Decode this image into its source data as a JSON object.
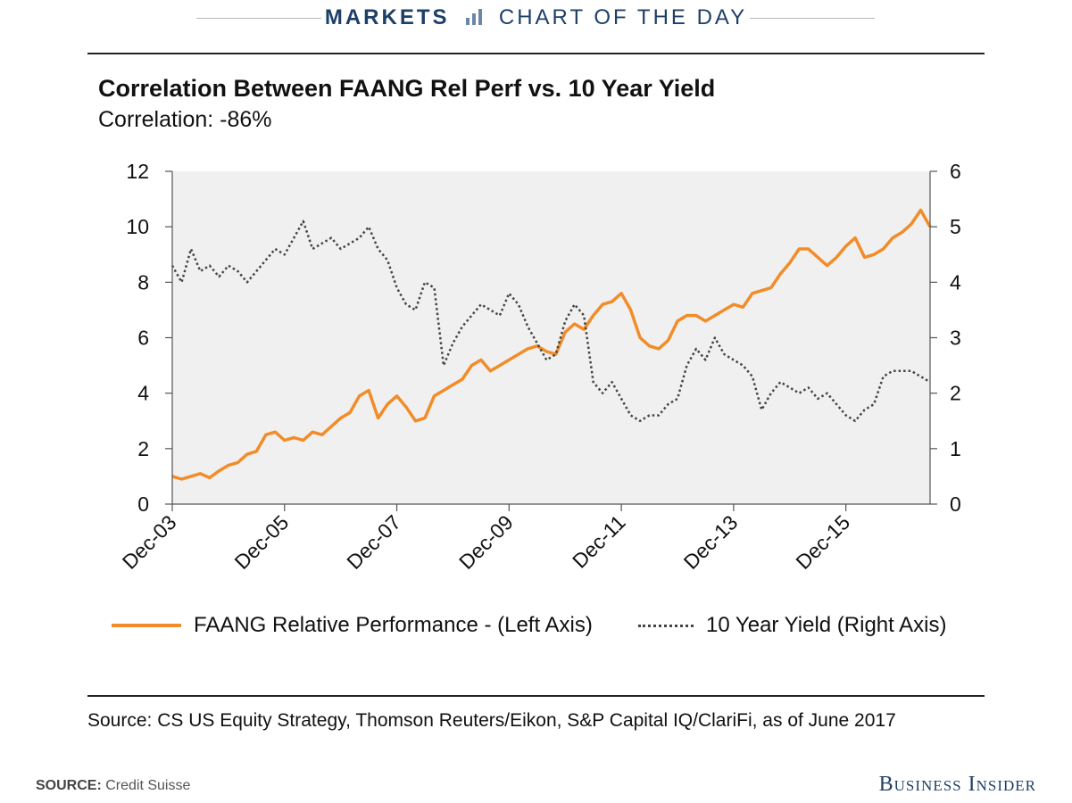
{
  "header": {
    "section": "MARKETS",
    "feature": "CHART OF THE DAY",
    "section_color": "#1e3f66"
  },
  "chart_data": {
    "type": "line",
    "title": "Correlation Between FAANG Rel Perf vs. 10 Year Yield",
    "subtitle": "Correlation: -86%",
    "x_tick_labels": [
      "Dec-03",
      "Dec-05",
      "Dec-07",
      "Dec-09",
      "Dec-11",
      "Dec-13",
      "Dec-15"
    ],
    "xlim": [
      "2003-12",
      "2017-06"
    ],
    "ylim_left": [
      0,
      12
    ],
    "ylim_right": [
      0,
      6
    ],
    "y_ticks_left": [
      "0",
      "2",
      "4",
      "6",
      "8",
      "10",
      "12"
    ],
    "y_ticks_right": [
      "0",
      "1",
      "2",
      "3",
      "4",
      "5",
      "6"
    ],
    "grid": false,
    "background": "#f0f0f0",
    "legend_position": "bottom",
    "series": [
      {
        "name": "FAANG Relative Performance - (Left Axis)",
        "axis": "left",
        "color": "#f28c28",
        "style": "solid",
        "x": [
          "2003-12",
          "2004-02",
          "2004-04",
          "2004-06",
          "2004-08",
          "2004-10",
          "2004-12",
          "2005-02",
          "2005-04",
          "2005-06",
          "2005-08",
          "2005-10",
          "2005-12",
          "2006-02",
          "2006-04",
          "2006-06",
          "2006-08",
          "2006-10",
          "2006-12",
          "2007-02",
          "2007-04",
          "2007-06",
          "2007-08",
          "2007-10",
          "2007-12",
          "2008-02",
          "2008-04",
          "2008-06",
          "2008-08",
          "2008-10",
          "2008-12",
          "2009-02",
          "2009-04",
          "2009-06",
          "2009-08",
          "2009-10",
          "2009-12",
          "2010-02",
          "2010-04",
          "2010-06",
          "2010-08",
          "2010-10",
          "2010-12",
          "2011-02",
          "2011-04",
          "2011-06",
          "2011-08",
          "2011-10",
          "2011-12",
          "2012-02",
          "2012-04",
          "2012-06",
          "2012-08",
          "2012-10",
          "2012-12",
          "2013-02",
          "2013-04",
          "2013-06",
          "2013-08",
          "2013-10",
          "2013-12",
          "2014-02",
          "2014-04",
          "2014-06",
          "2014-08",
          "2014-10",
          "2014-12",
          "2015-02",
          "2015-04",
          "2015-06",
          "2015-08",
          "2015-10",
          "2015-12",
          "2016-02",
          "2016-04",
          "2016-06",
          "2016-08",
          "2016-10",
          "2016-12",
          "2017-02",
          "2017-04",
          "2017-06"
        ],
        "values": [
          1.0,
          0.9,
          1.0,
          1.1,
          0.95,
          1.2,
          1.4,
          1.5,
          1.8,
          1.9,
          2.5,
          2.6,
          2.3,
          2.4,
          2.3,
          2.6,
          2.5,
          2.8,
          3.1,
          3.3,
          3.9,
          4.1,
          3.1,
          3.6,
          3.9,
          3.5,
          3.0,
          3.1,
          3.9,
          4.1,
          4.3,
          4.5,
          5.0,
          5.2,
          4.8,
          5.0,
          5.2,
          5.4,
          5.6,
          5.7,
          5.5,
          5.4,
          6.2,
          6.5,
          6.3,
          6.8,
          7.2,
          7.3,
          7.6,
          7.0,
          6.0,
          5.7,
          5.6,
          5.9,
          6.6,
          6.8,
          6.8,
          6.6,
          6.8,
          7.0,
          7.2,
          7.1,
          7.6,
          7.7,
          7.8,
          8.3,
          8.7,
          9.2,
          9.2,
          8.9,
          8.6,
          8.9,
          9.3,
          9.6,
          8.9,
          9.0,
          9.2,
          9.6,
          9.8,
          10.1,
          10.6,
          10.0
        ]
      },
      {
        "name": "10 Year Yield (Right Axis)",
        "axis": "right",
        "color": "#444444",
        "style": "dotted",
        "x": [
          "2003-12",
          "2004-02",
          "2004-04",
          "2004-06",
          "2004-08",
          "2004-10",
          "2004-12",
          "2005-02",
          "2005-04",
          "2005-06",
          "2005-08",
          "2005-10",
          "2005-12",
          "2006-02",
          "2006-04",
          "2006-06",
          "2006-08",
          "2006-10",
          "2006-12",
          "2007-02",
          "2007-04",
          "2007-06",
          "2007-08",
          "2007-10",
          "2007-12",
          "2008-02",
          "2008-04",
          "2008-06",
          "2008-08",
          "2008-10",
          "2008-12",
          "2009-02",
          "2009-04",
          "2009-06",
          "2009-08",
          "2009-10",
          "2009-12",
          "2010-02",
          "2010-04",
          "2010-06",
          "2010-08",
          "2010-10",
          "2010-12",
          "2011-02",
          "2011-04",
          "2011-06",
          "2011-08",
          "2011-10",
          "2011-12",
          "2012-02",
          "2012-04",
          "2012-06",
          "2012-08",
          "2012-10",
          "2012-12",
          "2013-02",
          "2013-04",
          "2013-06",
          "2013-08",
          "2013-10",
          "2013-12",
          "2014-02",
          "2014-04",
          "2014-06",
          "2014-08",
          "2014-10",
          "2014-12",
          "2015-02",
          "2015-04",
          "2015-06",
          "2015-08",
          "2015-10",
          "2015-12",
          "2016-02",
          "2016-04",
          "2016-06",
          "2016-08",
          "2016-10",
          "2016-12",
          "2017-02",
          "2017-04",
          "2017-06"
        ],
        "values": [
          4.3,
          4.0,
          4.6,
          4.2,
          4.3,
          4.1,
          4.3,
          4.2,
          4.0,
          4.2,
          4.4,
          4.6,
          4.5,
          4.8,
          5.1,
          4.6,
          4.7,
          4.8,
          4.6,
          4.7,
          4.8,
          5.0,
          4.6,
          4.4,
          3.9,
          3.6,
          3.5,
          4.0,
          3.9,
          2.5,
          2.9,
          3.2,
          3.4,
          3.6,
          3.5,
          3.4,
          3.8,
          3.6,
          3.2,
          2.9,
          2.6,
          2.7,
          3.3,
          3.6,
          3.4,
          2.2,
          2.0,
          2.2,
          1.9,
          1.6,
          1.5,
          1.6,
          1.6,
          1.8,
          1.9,
          2.5,
          2.8,
          2.6,
          3.0,
          2.7,
          2.6,
          2.5,
          2.3,
          1.7,
          2.0,
          2.2,
          2.1,
          2.0,
          2.1,
          1.9,
          2.0,
          1.8,
          1.6,
          1.5,
          1.7,
          1.8,
          2.3,
          2.4,
          2.4,
          2.4,
          2.3,
          2.2
        ]
      }
    ]
  },
  "legend": {
    "faang": "FAANG Relative Performance - (Left Axis)",
    "yield": "10 Year Yield (Right Axis)"
  },
  "footer": {
    "source_note": "Source: CS US Equity Strategy, Thomson Reuters/Eikon, S&P Capital IQ/ClariFi, as of June 2017",
    "credit_label": "SOURCE:",
    "credit_value": "Credit Suisse",
    "brand": "Business Insider"
  }
}
